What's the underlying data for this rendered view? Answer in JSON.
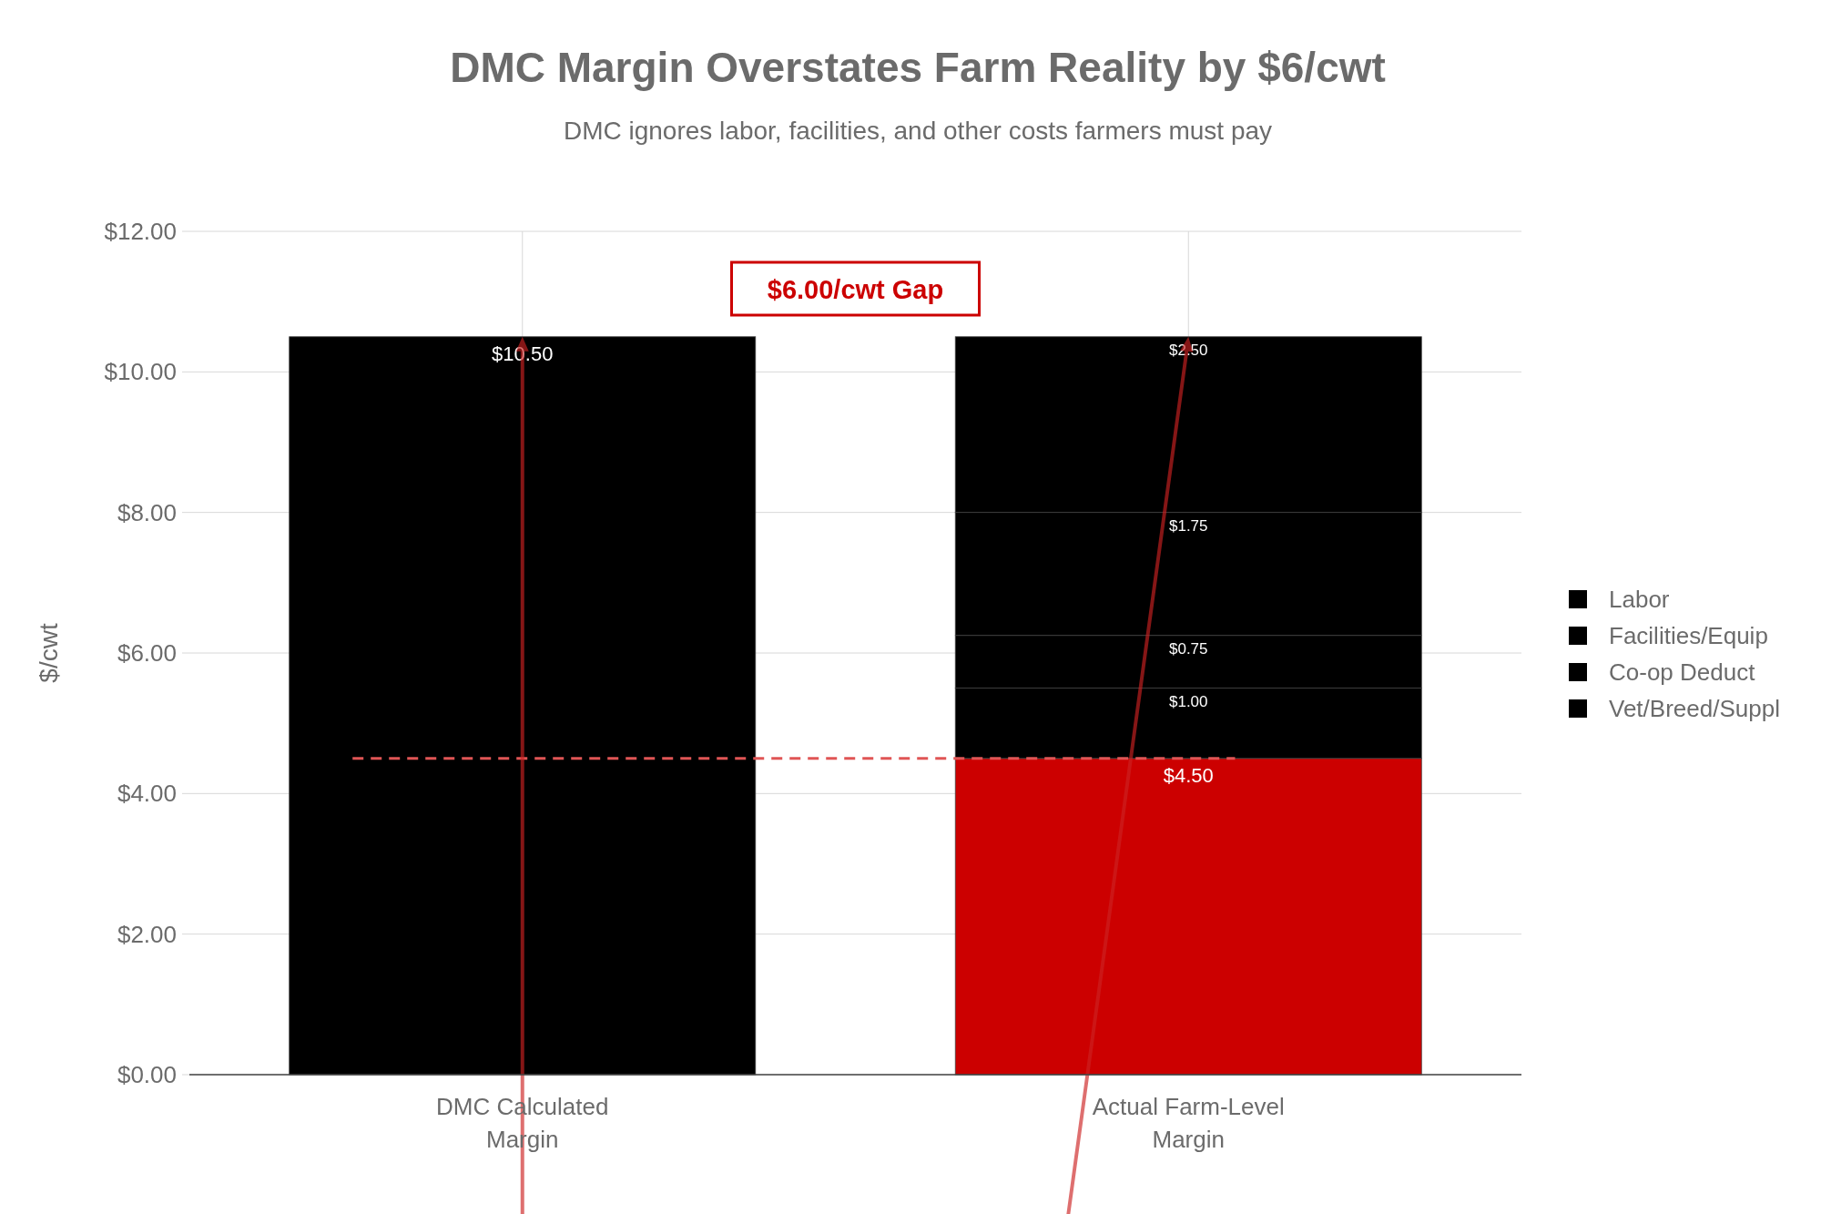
{
  "chart_data": {
    "type": "bar",
    "title": "DMC Margin Overstates Farm Reality by $6/cwt",
    "subtitle": "DMC ignores labor, facilities, and other costs farmers must pay",
    "ylabel": "$/cwt",
    "categories": [
      "DMC Calculated\nMargin",
      "Actual Farm-Level\nMargin"
    ],
    "stacked": true,
    "series": [
      {
        "color": "#000000",
        "values": [
          10.5,
          null
        ],
        "value_labels": [
          "$10.50",
          null
        ]
      },
      {
        "color": "#cc0000",
        "values": [
          null,
          4.5
        ],
        "value_labels": [
          null,
          "$4.50"
        ]
      },
      {
        "name": "Vet/Breed/Suppl",
        "color": "#000000",
        "values": [
          null,
          1.0
        ],
        "value_labels": [
          null,
          "$1.00"
        ]
      },
      {
        "name": "Co-op Deduct",
        "color": "#000000",
        "values": [
          null,
          0.75
        ],
        "value_labels": [
          null,
          "$0.75"
        ]
      },
      {
        "name": "Facilities/Equip",
        "color": "#000000",
        "values": [
          null,
          1.75
        ],
        "value_labels": [
          null,
          "$1.75"
        ]
      },
      {
        "name": "Labor",
        "color": "#000000",
        "values": [
          null,
          2.5
        ],
        "value_labels": [
          null,
          "$2.50"
        ]
      }
    ],
    "ylim": [
      0,
      12
    ],
    "yticks": [
      {
        "value": 0,
        "label": "$0.00"
      },
      {
        "value": 2,
        "label": "$2.00"
      },
      {
        "value": 4,
        "label": "$4.00"
      },
      {
        "value": 6,
        "label": "$6.00"
      },
      {
        "value": 8,
        "label": "$8.00"
      },
      {
        "value": 10,
        "label": "$10.00"
      },
      {
        "value": 12,
        "label": "$12.00"
      }
    ],
    "grid": true,
    "legend": "right",
    "ref_lines": [
      {
        "axis": "y",
        "value": 4.5,
        "color": "#e05555",
        "line_style": "dashed"
      }
    ],
    "annotations": [
      "$6.00/cwt Gap"
    ]
  }
}
